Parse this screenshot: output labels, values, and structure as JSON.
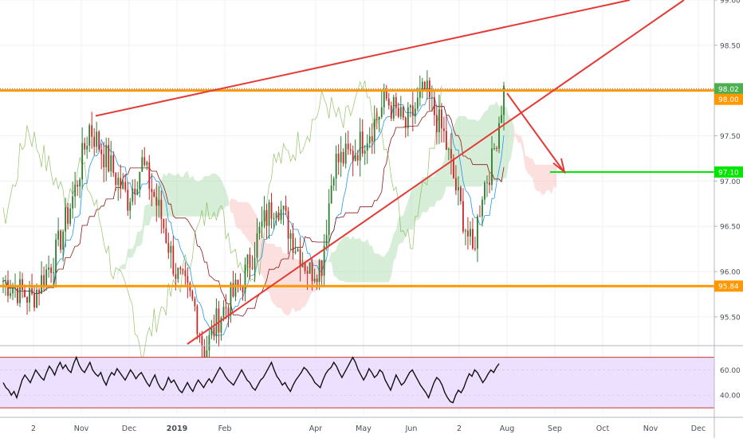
{
  "chart_data": {
    "type": "candlestick",
    "main_panel": {
      "ylim": [
        95.2,
        99.0
      ],
      "y_ticks": [
        {
          "value": 99.0,
          "label": "99.00"
        },
        {
          "value": 98.5,
          "label": "98.50"
        },
        {
          "value": 97.5,
          "label": "97.50"
        },
        {
          "value": 97.0,
          "label": "97.00"
        },
        {
          "value": 96.5,
          "label": "96.50"
        },
        {
          "value": 96.0,
          "label": "96.00"
        },
        {
          "value": 95.5,
          "label": "95.50"
        }
      ],
      "price_badges": [
        {
          "value": 98.02,
          "label": "98.02",
          "color": "#4caf50"
        },
        {
          "value": 98.0,
          "label": "98.00",
          "color": "#ff9800"
        },
        {
          "value": 97.1,
          "label": "97.10",
          "color": "#00e600"
        },
        {
          "value": 95.84,
          "label": "95.84",
          "color": "#ff9800"
        }
      ],
      "horizontal_levels": [
        {
          "value": 98.0,
          "color": "#ff9800"
        },
        {
          "value": 95.84,
          "color": "#ff9800"
        }
      ],
      "target_level": {
        "value": 97.1,
        "color": "#00e600"
      }
    },
    "rsi_panel": {
      "ylim": [
        25,
        78
      ],
      "y_ticks": [
        {
          "value": 60,
          "label": "60.00"
        },
        {
          "value": 40,
          "label": "40.00"
        }
      ],
      "band": [
        30,
        70
      ],
      "values": [
        50,
        46,
        44,
        40,
        43,
        38,
        45,
        52,
        56,
        53,
        50,
        55,
        60,
        57,
        54,
        52,
        58,
        63,
        60,
        56,
        62,
        66,
        61,
        64,
        60,
        58,
        65,
        70,
        64,
        60,
        58,
        62,
        66,
        60,
        57,
        55,
        58,
        52,
        48,
        54,
        58,
        56,
        61,
        58,
        55,
        52,
        56,
        60,
        57,
        53,
        56,
        58,
        54,
        50,
        47,
        52,
        56,
        50,
        46,
        44,
        48,
        54,
        50,
        52,
        48,
        44,
        42,
        46,
        50,
        46,
        43,
        48,
        52,
        49,
        46,
        50,
        53,
        50,
        54,
        58,
        62,
        59,
        55,
        52,
        50,
        48,
        52,
        56,
        60,
        56,
        52,
        50,
        46,
        44,
        48,
        52,
        54,
        58,
        62,
        66,
        60,
        55,
        52,
        48,
        50,
        46,
        43,
        48,
        52,
        55,
        58,
        62,
        60,
        57,
        54,
        50,
        48,
        46,
        52,
        57,
        60,
        62,
        66,
        63,
        58,
        54,
        58,
        62,
        66,
        70,
        66,
        60,
        56,
        52,
        56,
        61,
        58,
        54,
        56,
        60,
        58,
        52,
        48,
        44,
        50,
        56,
        52,
        48,
        50,
        54,
        58,
        60,
        56,
        52,
        48,
        45,
        42,
        38,
        44,
        50,
        54,
        52,
        48,
        42,
        38,
        35,
        34,
        40,
        44,
        42,
        46,
        52,
        57,
        55,
        60,
        58,
        54,
        50,
        53,
        57,
        60,
        58,
        62,
        65
      ]
    },
    "x_axis": {
      "ticks": [
        {
          "label": "2",
          "bold": false
        },
        {
          "label": "Nov",
          "bold": false
        },
        {
          "label": "Dec",
          "bold": false
        },
        {
          "label": "2019",
          "bold": true
        },
        {
          "label": "Feb",
          "bold": false
        },
        {
          "label": "Apr",
          "bold": false
        },
        {
          "label": "May",
          "bold": false
        },
        {
          "label": "Jun",
          "bold": false
        },
        {
          "label": "2",
          "bold": false
        },
        {
          "label": "Aug",
          "bold": false
        },
        {
          "label": "Sep",
          "bold": false
        },
        {
          "label": "Oct",
          "bold": false
        },
        {
          "label": "Nov",
          "bold": false
        },
        {
          "label": "Dec",
          "bold": false
        }
      ]
    },
    "colors": {
      "up_candle": "#2e7d32",
      "down_candle": "#c62828",
      "trendline": "#e53935",
      "tenkan": "#2196f3",
      "kijun": "#8b1a1a",
      "chikou": "#7cb342",
      "kumo_bull": "#a5d6a7",
      "kumo_bear": "#f8bbbb",
      "rsi_line": "#111111",
      "rsi_band_fill": "#ede0ff",
      "rsi_band_line": "#c0392b"
    }
  }
}
